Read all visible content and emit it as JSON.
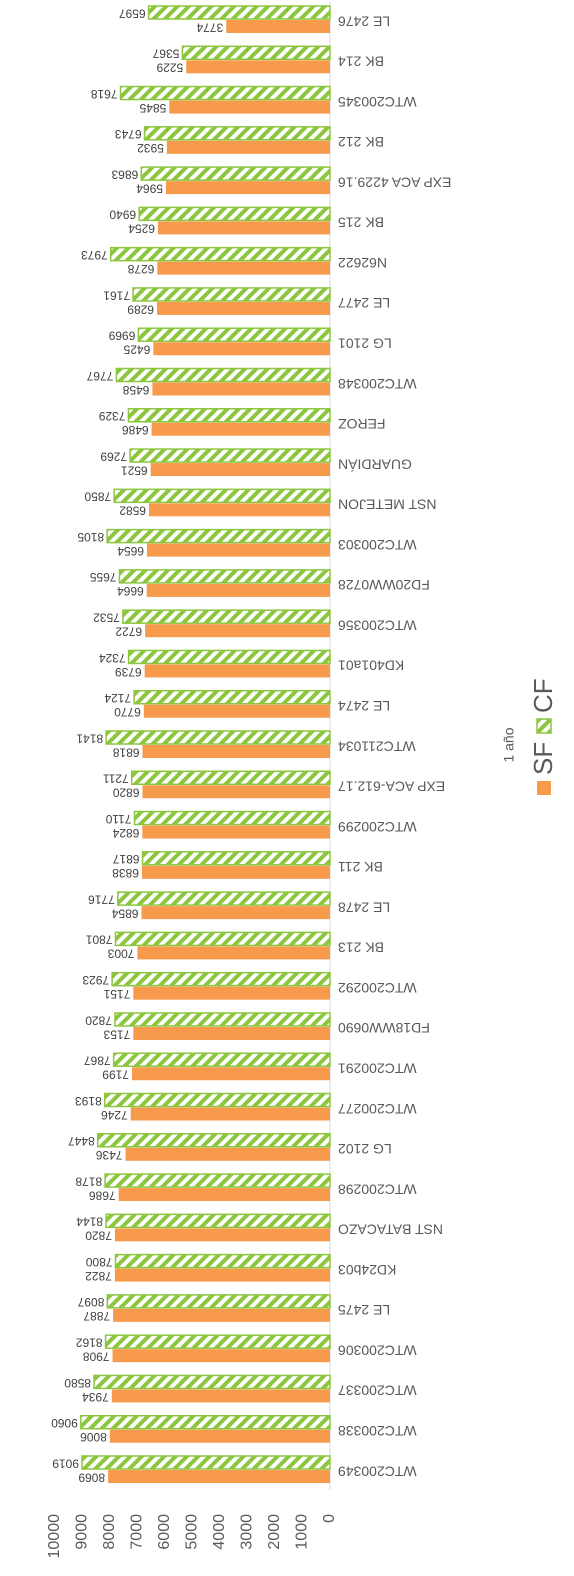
{
  "chart_data": {
    "type": "bar",
    "title": "1 año",
    "categories": [
      "WTC200349",
      "WTC200338",
      "WTC200337",
      "WTC200306",
      "LE 2475",
      "KD24b03",
      "NST BATACAZO",
      "WTC200298",
      "LG 2102",
      "WTC200277",
      "WTC200291",
      "FD18WW0690",
      "WTC200292",
      "BK 213",
      "LE 2478",
      "BK 211",
      "WTC200299",
      "EXP ACA-612.17",
      "WTC211034",
      "LE 2474",
      "KD401a01",
      "WTC200356",
      "FD20WW0728",
      "WTC200303",
      "NST METEJON",
      "GUARDIÁN",
      "FEROZ",
      "WTC200348",
      "LG 2101",
      "LE 2477",
      "N62622",
      "BK 215",
      "EXP ACA 4229.16",
      "BK 212",
      "WTC200345",
      "BK 214",
      "LE 2476"
    ],
    "series": [
      {
        "name": "SF",
        "color": "#f79a4c",
        "values": [
          8069,
          8006,
          7934,
          7908,
          7887,
          7822,
          7820,
          7686,
          7436,
          7246,
          7199,
          7153,
          7151,
          7003,
          6854,
          6838,
          6824,
          6820,
          6818,
          6770,
          6739,
          6722,
          6664,
          6654,
          6582,
          6521,
          6486,
          6458,
          6425,
          6289,
          6278,
          6254,
          5964,
          5932,
          5845,
          5229,
          3774
        ]
      },
      {
        "name": "CF",
        "color": "#8cc63f",
        "hatch": true,
        "values": [
          9019,
          9060,
          8580,
          8162,
          8097,
          7800,
          8144,
          8178,
          8447,
          8193,
          7867,
          7820,
          7923,
          7801,
          7716,
          6817,
          7110,
          7211,
          8141,
          7124,
          7324,
          7532,
          7655,
          8105,
          7850,
          7269,
          7329,
          7767,
          6969,
          7161,
          7973,
          6940,
          6863,
          6743,
          7618,
          5367,
          6597
        ]
      }
    ],
    "ylim": [
      0,
      10000
    ],
    "yticks": [
      0,
      1000,
      2000,
      3000,
      4000,
      5000,
      6000,
      7000,
      8000,
      9000,
      10000
    ],
    "grid": false,
    "legend": "bottom",
    "data_labels": true
  }
}
